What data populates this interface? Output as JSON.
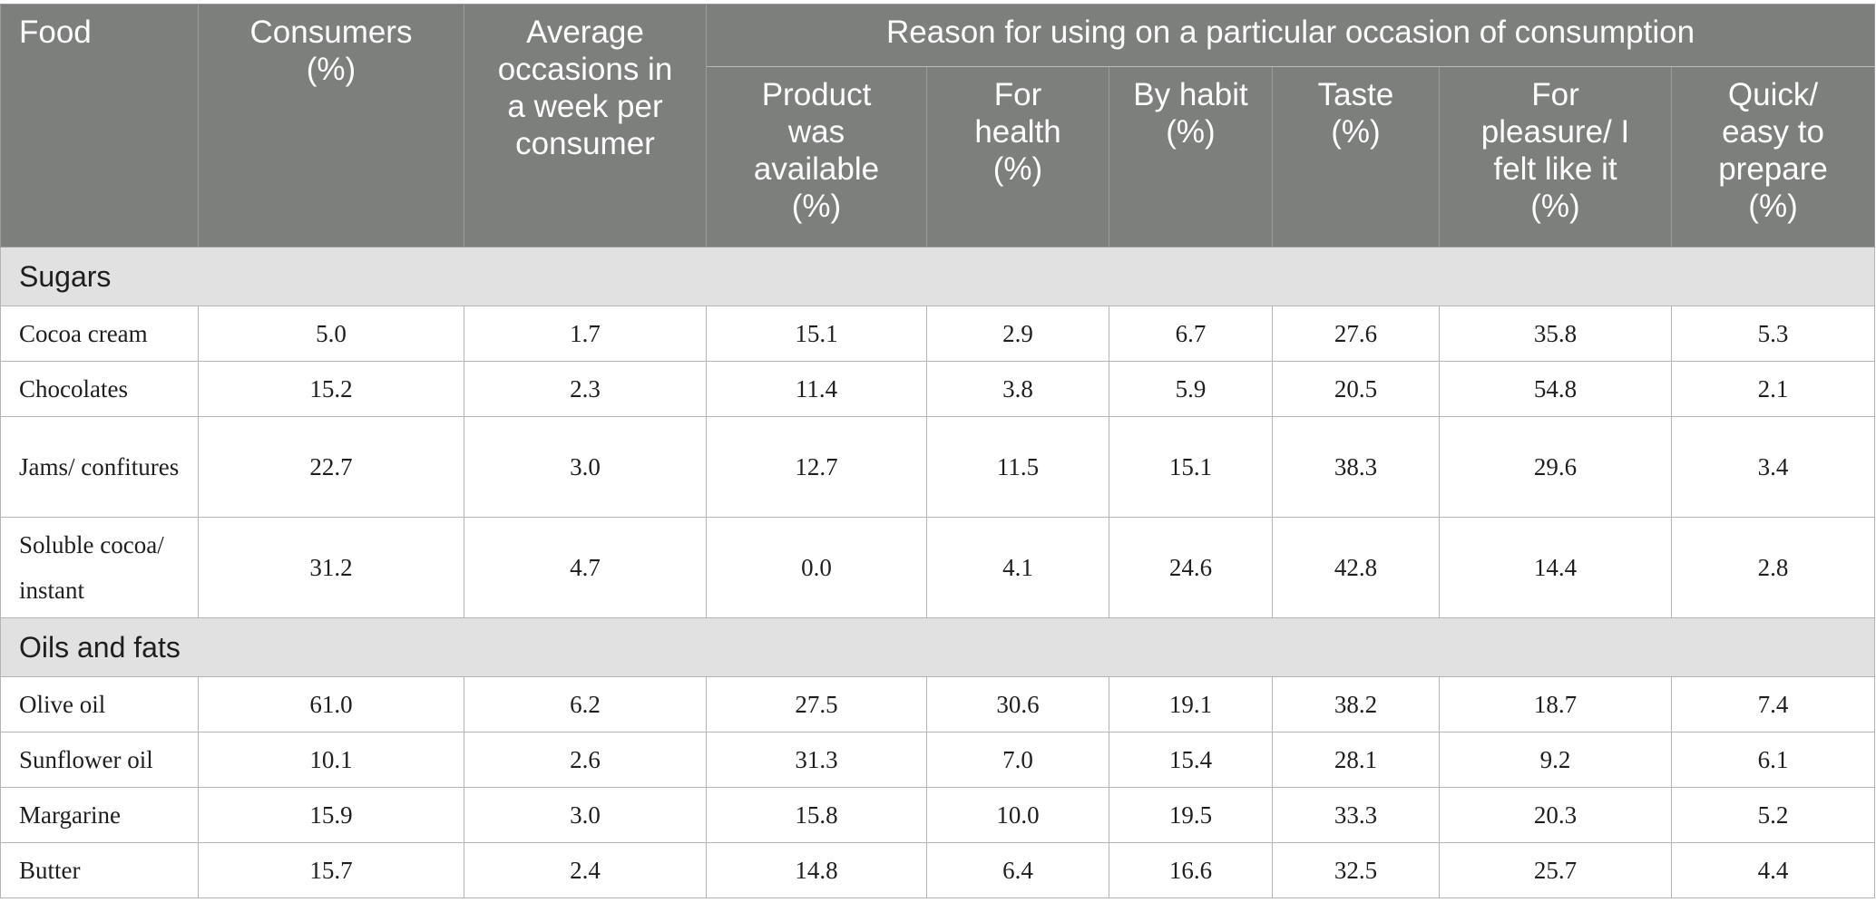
{
  "header": {
    "food": "Food",
    "consumers": "Consumers (%)",
    "avg_occasions": "Average occasions in a week per consumer",
    "reason_group": "Reason for using on a particular occasion of consumption",
    "reasons": [
      "Product was available (%)",
      "For health (%)",
      "By habit (%)",
      "Taste (%)",
      "For pleasure/ I felt like it (%)",
      "Quick/ easy to prepare (%)"
    ]
  },
  "categories": [
    {
      "name": "Sugars",
      "rows": [
        {
          "food": "Cocoa cream",
          "values": [
            "5.0",
            "1.7",
            "15.1",
            "2.9",
            "6.7",
            "27.6",
            "35.8",
            "5.3"
          ]
        },
        {
          "food": "Chocolates",
          "values": [
            "15.2",
            "2.3",
            "11.4",
            "3.8",
            "5.9",
            "20.5",
            "54.8",
            "2.1"
          ]
        },
        {
          "food": "Jams/ confitures",
          "values": [
            "22.7",
            "3.0",
            "12.7",
            "11.5",
            "15.1",
            "38.3",
            "29.6",
            "3.4"
          ]
        },
        {
          "food": "Soluble cocoa/ instant",
          "values": [
            "31.2",
            "4.7",
            "0.0",
            "4.1",
            "24.6",
            "42.8",
            "14.4",
            "2.8"
          ]
        }
      ]
    },
    {
      "name": "Oils and fats",
      "rows": [
        {
          "food": "Olive oil",
          "values": [
            "61.0",
            "6.2",
            "27.5",
            "30.6",
            "19.1",
            "38.2",
            "18.7",
            "7.4"
          ]
        },
        {
          "food": "Sunflower oil",
          "values": [
            "10.1",
            "2.6",
            "31.3",
            "7.0",
            "15.4",
            "28.1",
            "9.2",
            "6.1"
          ]
        },
        {
          "food": "Margarine",
          "values": [
            "15.9",
            "3.0",
            "15.8",
            "10.0",
            "19.5",
            "33.3",
            "20.3",
            "5.2"
          ]
        },
        {
          "food": "Butter",
          "values": [
            "15.7",
            "2.4",
            "14.8",
            "6.4",
            "16.6",
            "32.5",
            "25.7",
            "4.4"
          ]
        }
      ]
    }
  ]
}
